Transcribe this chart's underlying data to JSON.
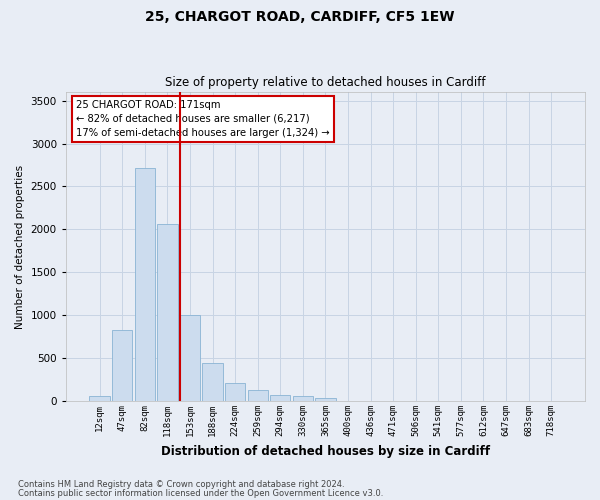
{
  "title_line1": "25, CHARGOT ROAD, CARDIFF, CF5 1EW",
  "title_line2": "Size of property relative to detached houses in Cardiff",
  "xlabel": "Distribution of detached houses by size in Cardiff",
  "ylabel": "Number of detached properties",
  "categories": [
    "12sqm",
    "47sqm",
    "82sqm",
    "118sqm",
    "153sqm",
    "188sqm",
    "224sqm",
    "259sqm",
    "294sqm",
    "330sqm",
    "365sqm",
    "400sqm",
    "436sqm",
    "471sqm",
    "506sqm",
    "541sqm",
    "577sqm",
    "612sqm",
    "647sqm",
    "683sqm",
    "718sqm"
  ],
  "values": [
    55,
    830,
    2720,
    2060,
    1000,
    450,
    210,
    130,
    70,
    60,
    40,
    5,
    5,
    3,
    2,
    0,
    0,
    0,
    0,
    0,
    0
  ],
  "bar_color": "#ccdcee",
  "bar_edge_color": "#8ab4d4",
  "grid_color": "#c8d4e4",
  "background_color": "#e8edf5",
  "annotation_box_text": "25 CHARGOT ROAD: 171sqm\n← 82% of detached houses are smaller (6,217)\n17% of semi-detached houses are larger (1,324) →",
  "annotation_box_color": "#ffffff",
  "annotation_box_edge_color": "#cc0000",
  "vline_color": "#cc0000",
  "vline_x": 3.55,
  "ylim": [
    0,
    3600
  ],
  "yticks": [
    0,
    500,
    1000,
    1500,
    2000,
    2500,
    3000,
    3500
  ],
  "footnote1": "Contains HM Land Registry data © Crown copyright and database right 2024.",
  "footnote2": "Contains public sector information licensed under the Open Government Licence v3.0."
}
